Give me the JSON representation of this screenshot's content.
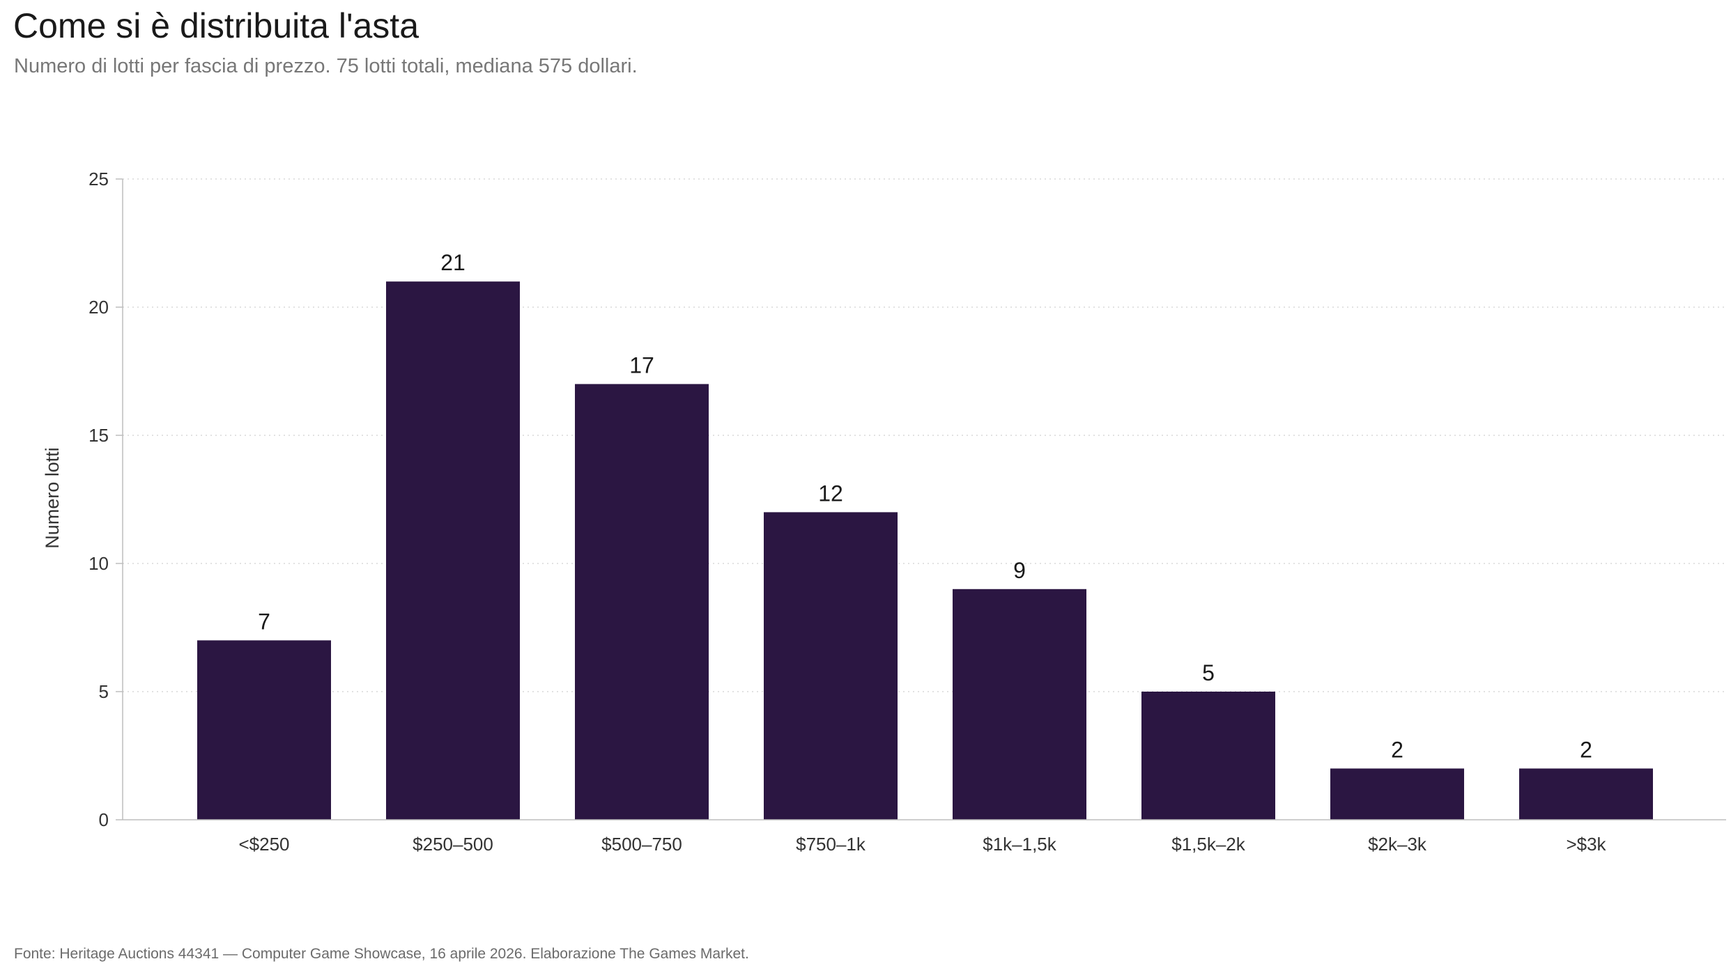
{
  "header": {
    "title": "Come si è distribuita l'asta",
    "subtitle": "Numero di lotti per fascia di prezzo. 75 lotti totali, mediana 575 dollari."
  },
  "footer": {
    "source": "Fonte: Heritage Auctions 44341 — Computer Game Showcase, 16 aprile 2026. Elaborazione The Games Market."
  },
  "colors": {
    "bar": "#2b1642",
    "grid": "#d9d9d9",
    "axis": "#bdbdbd"
  },
  "chart_data": {
    "type": "bar",
    "title": "Come si è distribuita l'asta",
    "subtitle": "Numero di lotti per fascia di prezzo. 75 lotti totali, mediana 575 dollari.",
    "xlabel": "",
    "ylabel": "Numero lotti",
    "categories": [
      "<$250",
      "$250–500",
      "$500–750",
      "$750–1k",
      "$1k–1,5k",
      "$1,5k–2k",
      "$2k–3k",
      ">$3k"
    ],
    "values": [
      7,
      21,
      17,
      12,
      9,
      5,
      2,
      2
    ],
    "value_labels": [
      "7",
      "21",
      "17",
      "12",
      "9",
      "5",
      "2",
      "2"
    ],
    "ylim": [
      0,
      25
    ],
    "yticks": [
      0,
      5,
      10,
      15,
      20,
      25
    ],
    "grid": "horizontal dotted",
    "legend": "none"
  }
}
